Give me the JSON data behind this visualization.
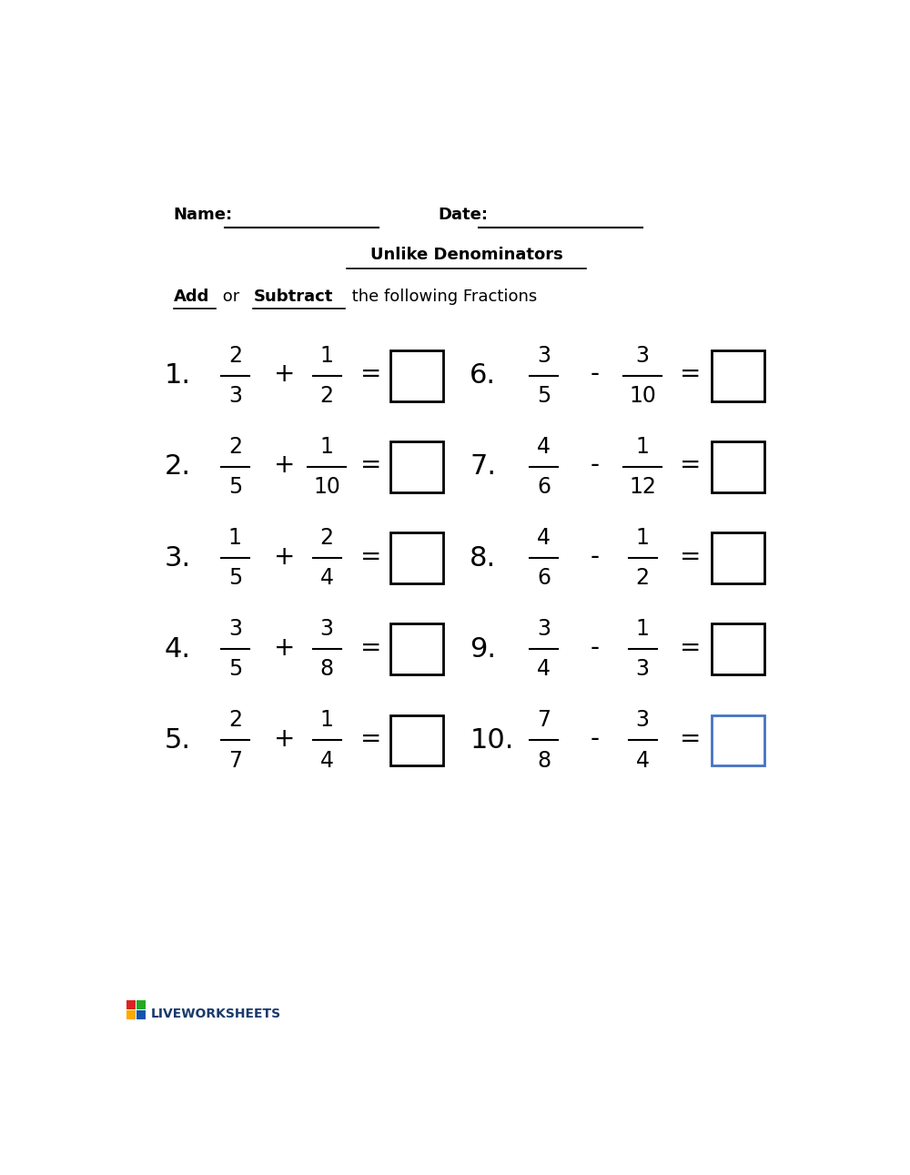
{
  "title": "Unlike Denominators",
  "name_label": "Name:",
  "date_label": "Date:",
  "background": "#ffffff",
  "problems": [
    {
      "num": "1.",
      "n1": "2",
      "d1": "3",
      "op": "+",
      "n2": "1",
      "d2": "2",
      "col": 0
    },
    {
      "num": "2.",
      "n1": "2",
      "d1": "5",
      "op": "+",
      "n2": "1",
      "d2": "10",
      "col": 0
    },
    {
      "num": "3.",
      "n1": "1",
      "d1": "5",
      "op": "+",
      "n2": "2",
      "d2": "4",
      "col": 0
    },
    {
      "num": "4.",
      "n1": "3",
      "d1": "5",
      "op": "+",
      "n2": "3",
      "d2": "8",
      "col": 0
    },
    {
      "num": "5.",
      "n1": "2",
      "d1": "7",
      "op": "+",
      "n2": "1",
      "d2": "4",
      "col": 0
    },
    {
      "num": "6.",
      "n1": "3",
      "d1": "5",
      "op": "-",
      "n2": "3",
      "d2": "10",
      "col": 1
    },
    {
      "num": "7.",
      "n1": "4",
      "d1": "6",
      "op": "-",
      "n2": "1",
      "d2": "12",
      "col": 1
    },
    {
      "num": "8.",
      "n1": "4",
      "d1": "6",
      "op": "-",
      "n2": "1",
      "d2": "2",
      "col": 1
    },
    {
      "num": "9.",
      "n1": "3",
      "d1": "4",
      "op": "-",
      "n2": "1",
      "d2": "3",
      "col": 1
    },
    {
      "num": "10.",
      "n1": "7",
      "d1": "8",
      "op": "-",
      "n2": "3",
      "d2": "4",
      "col": 1
    }
  ],
  "box_color_normal": "#000000",
  "box_color_last": "#4472c4",
  "row_ys_offsets": [
    3.35,
    4.65,
    5.95,
    7.25,
    8.55
  ],
  "logo_colors": [
    "#dd2222",
    "#22aa22",
    "#ffaa00",
    "#1155aa"
  ],
  "logo_text_color": "#1a3a6b"
}
